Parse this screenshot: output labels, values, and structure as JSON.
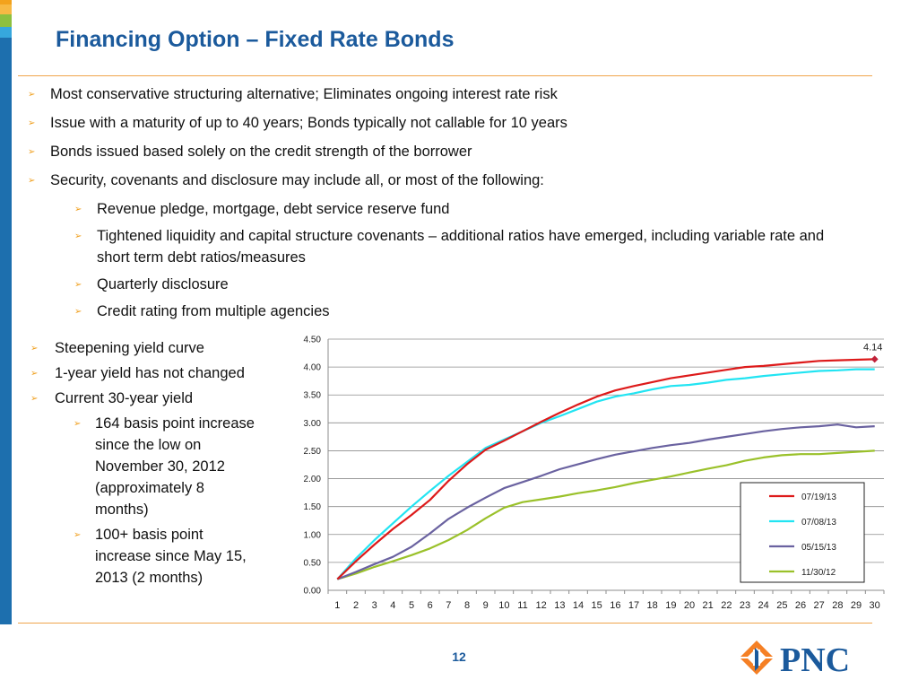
{
  "title": "Financing Option – Fixed Rate Bonds",
  "top_bullets": [
    {
      "level": 1,
      "text": "Most conservative structuring alternative; Eliminates ongoing interest rate risk"
    },
    {
      "level": 1,
      "text": "Issue with a maturity of up to 40 years; Bonds typically not callable for 10 years"
    },
    {
      "level": 1,
      "text": "Bonds issued based solely on the credit strength of the borrower"
    },
    {
      "level": 1,
      "text": "Security, covenants and disclosure may include all, or most of the following:"
    },
    {
      "level": 2,
      "text": "Revenue pledge, mortgage, debt service reserve fund"
    },
    {
      "level": 2,
      "text": "Tightened liquidity and capital structure covenants – additional ratios have emerged, including variable rate and short term debt ratios/measures"
    },
    {
      "level": 2,
      "text": "Quarterly disclosure"
    },
    {
      "level": 2,
      "text": "Credit rating from multiple agencies"
    }
  ],
  "left_bullets": [
    {
      "level": 1,
      "text": "Steepening yield curve"
    },
    {
      "level": 1,
      "text": "1-year yield has not changed"
    },
    {
      "level": 1,
      "text": "Current 30-year yield"
    },
    {
      "level": 2,
      "text": "164 basis point increase since the low on November 30, 2012 (approximately 8 months)"
    },
    {
      "level": 2,
      "text": "100+ basis point increase since May 15, 2013 (2 months)"
    }
  ],
  "chart_data": {
    "type": "line",
    "title": "",
    "xlabel": "",
    "ylabel": "",
    "x": [
      1,
      2,
      3,
      4,
      5,
      6,
      7,
      8,
      9,
      10,
      11,
      12,
      13,
      14,
      15,
      16,
      17,
      18,
      19,
      20,
      21,
      22,
      23,
      24,
      25,
      26,
      27,
      28,
      29,
      30
    ],
    "ylim": [
      0,
      4.5
    ],
    "yticks": [
      "0.00",
      "0.50",
      "1.00",
      "1.50",
      "2.00",
      "2.50",
      "3.00",
      "3.50",
      "4.00",
      "4.50"
    ],
    "grid": true,
    "legend": "bottom-right",
    "series": [
      {
        "name": "07/19/13",
        "color": "#dd1a1a",
        "values": [
          0.2,
          0.52,
          0.82,
          1.1,
          1.35,
          1.62,
          1.96,
          2.26,
          2.52,
          2.68,
          2.85,
          3.02,
          3.18,
          3.33,
          3.47,
          3.58,
          3.66,
          3.73,
          3.8,
          3.85,
          3.9,
          3.95,
          4.0,
          4.02,
          4.05,
          4.08,
          4.11,
          4.12,
          4.13,
          4.14
        ]
      },
      {
        "name": "07/08/13",
        "color": "#22e4f2",
        "values": [
          0.2,
          0.57,
          0.9,
          1.2,
          1.5,
          1.78,
          2.05,
          2.3,
          2.55,
          2.7,
          2.85,
          3.0,
          3.12,
          3.25,
          3.38,
          3.47,
          3.53,
          3.6,
          3.66,
          3.68,
          3.72,
          3.77,
          3.8,
          3.84,
          3.87,
          3.9,
          3.93,
          3.94,
          3.96,
          3.96
        ]
      },
      {
        "name": "05/15/13",
        "color": "#6a62a0",
        "values": [
          0.2,
          0.33,
          0.47,
          0.6,
          0.78,
          1.02,
          1.28,
          1.48,
          1.66,
          1.83,
          1.94,
          2.05,
          2.17,
          2.26,
          2.35,
          2.43,
          2.49,
          2.55,
          2.6,
          2.64,
          2.7,
          2.75,
          2.8,
          2.85,
          2.89,
          2.92,
          2.94,
          2.97,
          2.92,
          2.94
        ]
      },
      {
        "name": "11/30/12",
        "color": "#9ac12a",
        "values": [
          0.2,
          0.3,
          0.42,
          0.52,
          0.63,
          0.75,
          0.9,
          1.08,
          1.29,
          1.48,
          1.58,
          1.63,
          1.68,
          1.74,
          1.79,
          1.85,
          1.92,
          1.98,
          2.04,
          2.11,
          2.18,
          2.24,
          2.32,
          2.38,
          2.42,
          2.44,
          2.44,
          2.46,
          2.48,
          2.5
        ]
      }
    ],
    "annotation": {
      "series": 0,
      "index": 29,
      "label": "4.14"
    }
  },
  "page_number": "12",
  "logo_text": "PNC",
  "colors": {
    "accent": "#1b5a9c",
    "rule": "#f0a54c",
    "arrow": "#f0a020",
    "sidebar": "#1d6fae"
  }
}
